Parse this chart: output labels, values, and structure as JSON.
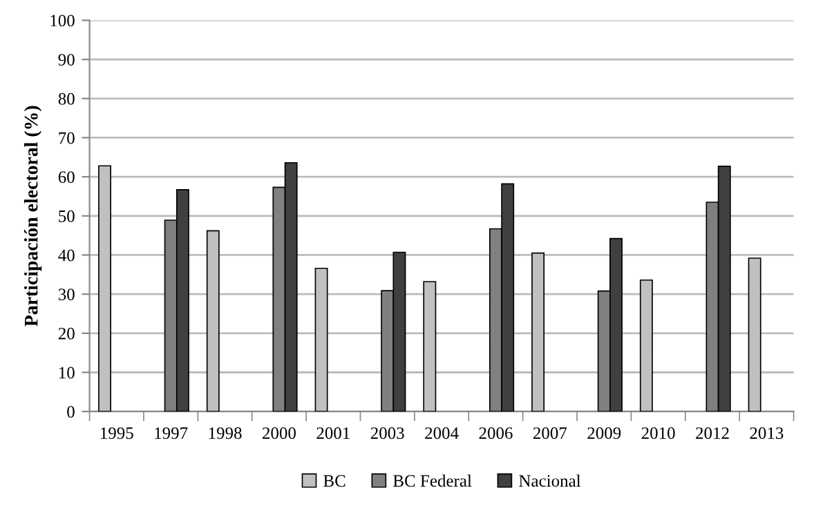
{
  "chart_data": {
    "type": "bar",
    "ylabel": "Participación electoral (%)",
    "categories": [
      "1995",
      "1997",
      "1998",
      "2000",
      "2001",
      "2003",
      "2004",
      "2006",
      "2007",
      "2009",
      "2010",
      "2012",
      "2013"
    ],
    "series": [
      {
        "name": "BC",
        "color": "#c0c0c0",
        "values": [
          62.8,
          null,
          46.2,
          null,
          36.6,
          null,
          33.2,
          null,
          40.5,
          null,
          33.6,
          null,
          39.2
        ]
      },
      {
        "name": "BC Federal",
        "color": "#808080",
        "values": [
          null,
          48.9,
          null,
          57.3,
          null,
          30.9,
          null,
          46.7,
          null,
          30.8,
          null,
          53.5,
          null
        ]
      },
      {
        "name": "Nacional",
        "color": "#404040",
        "values": [
          null,
          56.7,
          null,
          63.6,
          null,
          40.7,
          null,
          58.2,
          null,
          44.2,
          null,
          62.7,
          null
        ]
      }
    ],
    "ylim": [
      0,
      100
    ],
    "yticks": [
      0,
      10,
      20,
      30,
      40,
      50,
      60,
      70,
      80,
      90,
      100
    ],
    "grid": "y",
    "legend": "bottom"
  }
}
